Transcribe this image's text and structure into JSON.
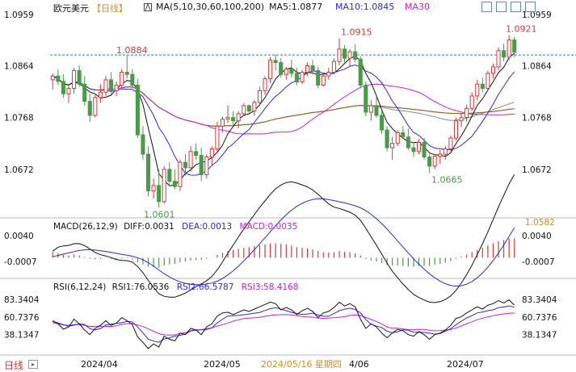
{
  "header": {
    "title": "欧元美元",
    "period": "【日线】",
    "ma_label": "MA(5,10,30,60,100,200)",
    "ma5": "MA5:1.0877",
    "ma10": "MA10:1.0845",
    "ma30": "MA30"
  },
  "toolbar": [
    "grid-icon",
    "up-arrow-icon",
    "down-arrow-icon",
    "settings-icon"
  ],
  "price_axis_ticks": [
    "1.0959",
    "1.0864",
    "1.0768",
    "1.0672"
  ],
  "price_marker": "1.0582",
  "annotations": {
    "high_1": "1.0884",
    "high_2": "1.0915",
    "high_3": "1.0921",
    "low_1": "1.0601",
    "low_2": "1.0665"
  },
  "macd": {
    "label": "MACD(26,12,9)",
    "diff": "DIFF:0.0031",
    "dea": "DEA:0.0013",
    "macd": "MACD:0.0035",
    "ticks": [
      "0.0040",
      "-0.0007"
    ]
  },
  "rsi": {
    "label": "RSI(6,12,24)",
    "rsi1": "RSI1:76.0536",
    "rsi2": "RSI2:66.5787",
    "rsi3": "RSI3:58.4168",
    "ticks": [
      "83.3404",
      "60.7376",
      "38.1347"
    ]
  },
  "footer": {
    "period": "日线",
    "dates": [
      "2024/04",
      "2024/05",
      "2024/05/16 星期四",
      "4/06",
      "2024/07"
    ]
  },
  "colors": {
    "up": "#d23c3c",
    "down": "#4a9a4a",
    "ma5": "#111111",
    "ma10": "#2b2bd6",
    "ma30": "#cc22cc",
    "ma60": "#888888",
    "ma100": "#d4901e",
    "ma200": "#8b5a2b",
    "grid": "#3377cc",
    "label_green": "#4a9a4a",
    "label_red": "#d23c3c"
  },
  "chart_data": {
    "type": "candlestick",
    "title": "欧元美元",
    "ylim": [
      1.0582,
      1.0959
    ],
    "candles": [
      [
        1.0838,
        1.085,
        1.082,
        1.0845
      ],
      [
        1.0845,
        1.0858,
        1.0828,
        1.0835
      ],
      [
        1.0835,
        1.0848,
        1.0805,
        1.0812
      ],
      [
        1.0812,
        1.083,
        1.0795,
        1.0822
      ],
      [
        1.0822,
        1.086,
        1.0812,
        1.0855
      ],
      [
        1.0855,
        1.0865,
        1.0825,
        1.083
      ],
      [
        1.083,
        1.0845,
        1.079,
        1.0798
      ],
      [
        1.0798,
        1.0812,
        1.076,
        1.0772
      ],
      [
        1.0772,
        1.0812,
        1.0768,
        1.0805
      ],
      [
        1.0805,
        1.083,
        1.0795,
        1.0815
      ],
      [
        1.0815,
        1.0845,
        1.0808,
        1.0838
      ],
      [
        1.0838,
        1.0852,
        1.0812,
        1.0818
      ],
      [
        1.0818,
        1.0835,
        1.0808,
        1.0828
      ],
      [
        1.0828,
        1.0858,
        1.0822,
        1.0852
      ],
      [
        1.0852,
        1.0884,
        1.084,
        1.0848
      ],
      [
        1.0848,
        1.0858,
        1.0822,
        1.0828
      ],
      [
        1.0828,
        1.084,
        1.073,
        1.0736
      ],
      [
        1.0736,
        1.0752,
        1.069,
        1.07
      ],
      [
        1.07,
        1.0715,
        1.0622,
        1.0632
      ],
      [
        1.0632,
        1.0655,
        1.0618,
        1.0642
      ],
      [
        1.0642,
        1.0672,
        1.0601,
        1.0612
      ],
      [
        1.0612,
        1.0678,
        1.0608,
        1.0672
      ],
      [
        1.0672,
        1.0685,
        1.064,
        1.065
      ],
      [
        1.065,
        1.0672,
        1.0635,
        1.064
      ],
      [
        1.064,
        1.069,
        1.0632,
        1.0685
      ],
      [
        1.0685,
        1.07,
        1.066,
        1.0675
      ],
      [
        1.0675,
        1.0715,
        1.0668,
        1.0705
      ],
      [
        1.0705,
        1.072,
        1.069,
        1.0698
      ],
      [
        1.0698,
        1.0712,
        1.065,
        1.0662
      ],
      [
        1.0662,
        1.07,
        1.0655,
        1.0695
      ],
      [
        1.0695,
        1.0715,
        1.068,
        1.071
      ],
      [
        1.071,
        1.076,
        1.0705,
        1.0752
      ],
      [
        1.0752,
        1.077,
        1.074,
        1.0765
      ],
      [
        1.0765,
        1.079,
        1.0758,
        1.0768
      ],
      [
        1.0768,
        1.078,
        1.0755,
        1.0762
      ],
      [
        1.0762,
        1.078,
        1.0748,
        1.0775
      ],
      [
        1.0775,
        1.0795,
        1.077,
        1.079
      ],
      [
        1.079,
        1.0792,
        1.0775,
        1.078
      ],
      [
        1.078,
        1.08,
        1.0772,
        1.0796
      ],
      [
        1.0796,
        1.0825,
        1.079,
        1.0818
      ],
      [
        1.0818,
        1.0845,
        1.081,
        1.084
      ],
      [
        1.084,
        1.088,
        1.0832,
        1.0874
      ],
      [
        1.0874,
        1.0885,
        1.0855,
        1.087
      ],
      [
        1.087,
        1.0878,
        1.0842,
        1.0848
      ],
      [
        1.0848,
        1.0862,
        1.0838,
        1.0858
      ],
      [
        1.0858,
        1.0875,
        1.0842,
        1.085
      ],
      [
        1.085,
        1.086,
        1.0828,
        1.0834
      ],
      [
        1.0834,
        1.0856,
        1.083,
        1.0852
      ],
      [
        1.0852,
        1.087,
        1.0845,
        1.0864
      ],
      [
        1.0864,
        1.0875,
        1.0848,
        1.0855
      ],
      [
        1.0855,
        1.0862,
        1.0822,
        1.0828
      ],
      [
        1.0828,
        1.085,
        1.0825,
        1.0845
      ],
      [
        1.0845,
        1.086,
        1.0838,
        1.0852
      ],
      [
        1.0852,
        1.0878,
        1.0848,
        1.0872
      ],
      [
        1.0872,
        1.0915,
        1.0865,
        1.0895
      ],
      [
        1.0895,
        1.0902,
        1.087,
        1.0878
      ],
      [
        1.0878,
        1.0895,
        1.0862,
        1.089
      ],
      [
        1.089,
        1.0904,
        1.087,
        1.0876
      ],
      [
        1.0876,
        1.0882,
        1.0822,
        1.0828
      ],
      [
        1.0828,
        1.0835,
        1.077,
        1.0778
      ],
      [
        1.0778,
        1.08,
        1.0762,
        1.079
      ],
      [
        1.079,
        1.0808,
        1.0768,
        1.0772
      ],
      [
        1.0772,
        1.078,
        1.0738,
        1.0745
      ],
      [
        1.0745,
        1.0752,
        1.0705,
        1.0712
      ],
      [
        1.0712,
        1.0732,
        1.069,
        1.072
      ],
      [
        1.072,
        1.0745,
        1.0715,
        1.074
      ],
      [
        1.074,
        1.0752,
        1.0728,
        1.0732
      ],
      [
        1.0732,
        1.0748,
        1.0708,
        1.0712
      ],
      [
        1.0712,
        1.0722,
        1.0695,
        1.0705
      ],
      [
        1.0705,
        1.0728,
        1.07,
        1.0722
      ],
      [
        1.0722,
        1.073,
        1.069,
        1.0695
      ],
      [
        1.0695,
        1.07,
        1.0665,
        1.0678
      ],
      [
        1.0678,
        1.07,
        1.0672,
        1.0696
      ],
      [
        1.0696,
        1.0708,
        1.0682,
        1.07
      ],
      [
        1.07,
        1.0715,
        1.069,
        1.071
      ],
      [
        1.071,
        1.0735,
        1.0705,
        1.073
      ],
      [
        1.073,
        1.0768,
        1.0725,
        1.0762
      ],
      [
        1.0762,
        1.0775,
        1.075,
        1.0768
      ],
      [
        1.0768,
        1.0792,
        1.076,
        1.0785
      ],
      [
        1.0785,
        1.0815,
        1.078,
        1.0808
      ],
      [
        1.0808,
        1.0838,
        1.08,
        1.083
      ],
      [
        1.083,
        1.0842,
        1.0815,
        1.0822
      ],
      [
        1.0822,
        1.0855,
        1.0818,
        1.085
      ],
      [
        1.085,
        1.0868,
        1.084,
        1.0862
      ],
      [
        1.0862,
        1.0898,
        1.0855,
        1.0892
      ],
      [
        1.0892,
        1.0905,
        1.0872,
        1.088
      ],
      [
        1.088,
        1.0921,
        1.0875,
        1.0912
      ],
      [
        1.0912,
        1.0918,
        1.088,
        1.0889
      ]
    ],
    "macd_hist": [
      0.001,
      0.0008,
      0.0005,
      0.0004,
      0.0006,
      0.0004,
      0.0001,
      -0.0002,
      -0.0003,
      -0.0002,
      -0.0001,
      -0.0002,
      -0.0003,
      -0.0002,
      -0.0001,
      -0.0003,
      -0.0008,
      -0.0012,
      -0.0016,
      -0.0017,
      -0.0018,
      -0.0014,
      -0.0012,
      -0.0011,
      -0.0008,
      -0.0007,
      -0.0005,
      -0.0004,
      -0.0004,
      -0.0002,
      0.0,
      0.0005,
      0.0009,
      0.0012,
      0.0014,
      0.0016,
      0.0018,
      0.0019,
      0.0021,
      0.0023,
      0.0024,
      0.0026,
      0.0026,
      0.0025,
      0.0024,
      0.0022,
      0.0019,
      0.0018,
      0.0017,
      0.0015,
      0.0012,
      0.001,
      0.0009,
      0.001,
      0.0012,
      0.0011,
      0.001,
      0.0008,
      0.0004,
      -0.0002,
      -0.0005,
      -0.0007,
      -0.001,
      -0.0013,
      -0.0014,
      -0.0014,
      -0.0015,
      -0.0016,
      -0.0016,
      -0.0015,
      -0.0015,
      -0.0015,
      -0.0013,
      -0.0011,
      -0.0009,
      -0.0006,
      -0.0002,
      0.0002,
      0.0006,
      0.001,
      0.0014,
      0.0018,
      0.0022,
      0.0026,
      0.003,
      0.0032,
      0.0035,
      0.0035
    ],
    "rsi1": [
      56,
      52,
      45,
      48,
      58,
      52,
      44,
      38,
      46,
      50,
      56,
      50,
      53,
      60,
      56,
      51,
      35,
      28,
      20,
      26,
      22,
      36,
      32,
      30,
      40,
      38,
      46,
      44,
      38,
      48,
      52,
      62,
      66,
      67,
      64,
      67,
      70,
      68,
      71,
      74,
      77,
      80,
      78,
      70,
      73,
      70,
      64,
      69,
      72,
      68,
      60,
      66,
      68,
      73,
      80,
      75,
      78,
      74,
      58,
      46,
      52,
      48,
      40,
      34,
      40,
      45,
      43,
      38,
      36,
      42,
      38,
      32,
      38,
      40,
      44,
      50,
      59,
      61,
      66,
      70,
      74,
      71,
      76,
      78,
      82,
      79,
      83,
      76
    ]
  }
}
